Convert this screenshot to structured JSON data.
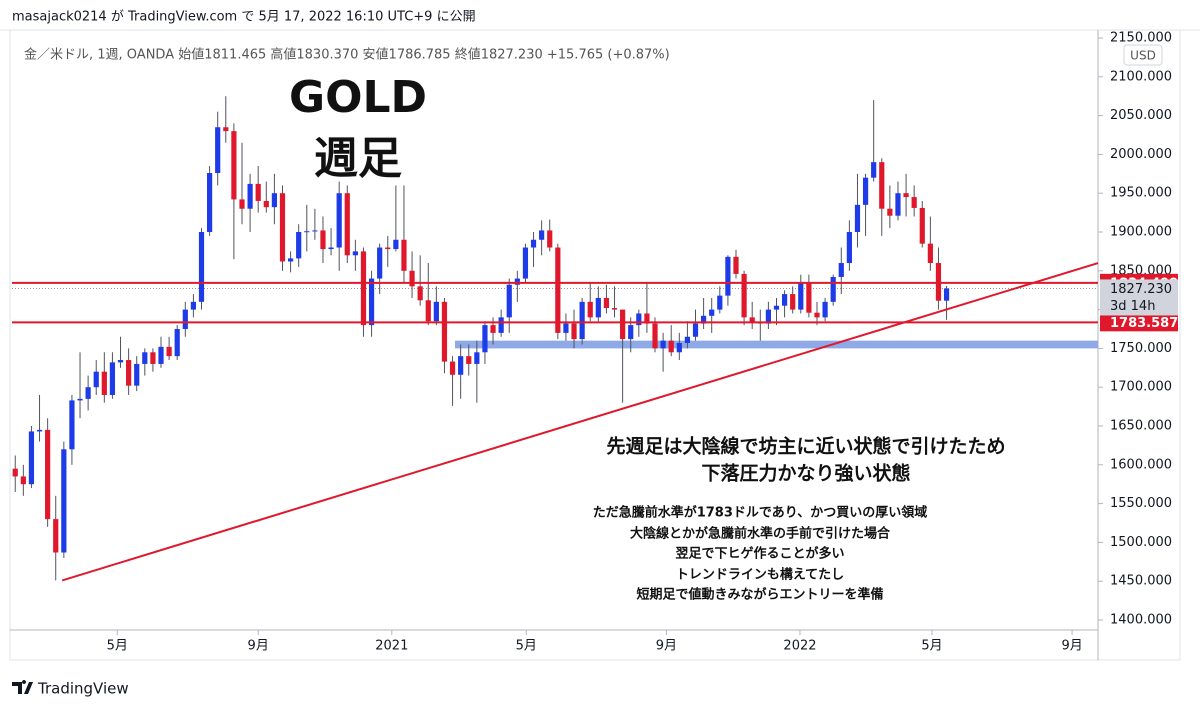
{
  "header": "masajack0214 が TradingView.com で 5月 17, 2022 16:10 UTC+9 に公開",
  "footer": "TradingView",
  "chart_data": {
    "type": "candlestick",
    "legend_text": "金／米ドル, 1週, OANDA  始値1811.465  高値1830.370  安値1786.785  終値1827.230  +15.765 (+0.87%)",
    "currency": "USD",
    "up_color": "#1e3be8",
    "down_color": "#e0182c",
    "candles": [
      [
        1595,
        1612,
        1565,
        1585
      ],
      [
        1585,
        1600,
        1560,
        1575
      ],
      [
        1575,
        1650,
        1570,
        1643
      ],
      [
        1643,
        1690,
        1630,
        1645
      ],
      [
        1645,
        1660,
        1520,
        1530
      ],
      [
        1530,
        1560,
        1451,
        1487
      ],
      [
        1487,
        1630,
        1480,
        1620
      ],
      [
        1620,
        1690,
        1600,
        1683
      ],
      [
        1683,
        1745,
        1660,
        1685
      ],
      [
        1685,
        1715,
        1670,
        1700
      ],
      [
        1700,
        1735,
        1690,
        1720
      ],
      [
        1720,
        1745,
        1680,
        1690
      ],
      [
        1690,
        1745,
        1685,
        1732
      ],
      [
        1732,
        1765,
        1725,
        1735
      ],
      [
        1735,
        1750,
        1690,
        1702
      ],
      [
        1702,
        1740,
        1695,
        1730
      ],
      [
        1730,
        1750,
        1715,
        1745
      ],
      [
        1745,
        1750,
        1720,
        1730
      ],
      [
        1730,
        1765,
        1725,
        1752
      ],
      [
        1752,
        1765,
        1735,
        1740
      ],
      [
        1740,
        1780,
        1735,
        1775
      ],
      [
        1775,
        1810,
        1765,
        1800
      ],
      [
        1800,
        1820,
        1790,
        1810
      ],
      [
        1810,
        1905,
        1800,
        1900
      ],
      [
        1900,
        1985,
        1895,
        1976
      ],
      [
        1976,
        2055,
        1960,
        2035
      ],
      [
        2035,
        2075,
        2015,
        2030
      ],
      [
        2030,
        2040,
        1865,
        1942
      ],
      [
        1942,
        2015,
        1910,
        1930
      ],
      [
        1930,
        1975,
        1900,
        1962
      ],
      [
        1962,
        1985,
        1925,
        1940
      ],
      [
        1940,
        1965,
        1925,
        1932
      ],
      [
        1932,
        1975,
        1910,
        1950
      ],
      [
        1950,
        1960,
        1850,
        1862
      ],
      [
        1862,
        1875,
        1848,
        1866
      ],
      [
        1866,
        1910,
        1855,
        1900
      ],
      [
        1900,
        1935,
        1875,
        1901
      ],
      [
        1901,
        1930,
        1890,
        1902
      ],
      [
        1902,
        1920,
        1860,
        1878
      ],
      [
        1878,
        1905,
        1870,
        1880
      ],
      [
        1880,
        1965,
        1850,
        1950
      ],
      [
        1950,
        1960,
        1860,
        1870
      ],
      [
        1870,
        1890,
        1850,
        1875
      ],
      [
        1875,
        1880,
        1765,
        1780
      ],
      [
        1780,
        1850,
        1765,
        1840
      ],
      [
        1840,
        1885,
        1820,
        1880
      ],
      [
        1880,
        1895,
        1855,
        1878
      ],
      [
        1878,
        1960,
        1875,
        1890
      ],
      [
        1890,
        1960,
        1835,
        1850
      ],
      [
        1850,
        1875,
        1815,
        1830
      ],
      [
        1830,
        1870,
        1805,
        1812
      ],
      [
        1812,
        1860,
        1780,
        1785
      ],
      [
        1785,
        1830,
        1780,
        1810
      ],
      [
        1810,
        1815,
        1718,
        1733
      ],
      [
        1733,
        1740,
        1676,
        1716
      ],
      [
        1716,
        1755,
        1685,
        1740
      ],
      [
        1740,
        1755,
        1715,
        1730
      ],
      [
        1730,
        1760,
        1680,
        1745
      ],
      [
        1745,
        1785,
        1730,
        1780
      ],
      [
        1780,
        1790,
        1755,
        1770
      ],
      [
        1770,
        1800,
        1765,
        1790
      ],
      [
        1790,
        1840,
        1770,
        1832
      ],
      [
        1832,
        1850,
        1810,
        1840
      ],
      [
        1840,
        1885,
        1835,
        1880
      ],
      [
        1880,
        1900,
        1855,
        1890
      ],
      [
        1890,
        1915,
        1870,
        1902
      ],
      [
        1902,
        1916,
        1875,
        1880
      ],
      [
        1880,
        1885,
        1762,
        1770
      ],
      [
        1770,
        1795,
        1760,
        1782
      ],
      [
        1782,
        1800,
        1750,
        1762
      ],
      [
        1762,
        1815,
        1755,
        1810
      ],
      [
        1810,
        1834,
        1785,
        1790
      ],
      [
        1790,
        1830,
        1785,
        1815
      ],
      [
        1815,
        1832,
        1795,
        1802
      ],
      [
        1802,
        1830,
        1790,
        1800
      ],
      [
        1800,
        1800,
        1680,
        1762
      ],
      [
        1762,
        1790,
        1745,
        1780
      ],
      [
        1780,
        1800,
        1765,
        1795
      ],
      [
        1795,
        1835,
        1770,
        1782
      ],
      [
        1782,
        1790,
        1745,
        1750
      ],
      [
        1750,
        1770,
        1720,
        1760
      ],
      [
        1760,
        1780,
        1740,
        1745
      ],
      [
        1745,
        1770,
        1735,
        1757
      ],
      [
        1757,
        1785,
        1750,
        1765
      ],
      [
        1765,
        1800,
        1760,
        1782
      ],
      [
        1782,
        1815,
        1775,
        1792
      ],
      [
        1792,
        1815,
        1770,
        1800
      ],
      [
        1800,
        1830,
        1795,
        1818
      ],
      [
        1818,
        1870,
        1805,
        1868
      ],
      [
        1868,
        1877,
        1840,
        1846
      ],
      [
        1846,
        1850,
        1780,
        1790
      ],
      [
        1790,
        1810,
        1775,
        1784
      ],
      [
        1784,
        1800,
        1760,
        1782
      ],
      [
        1782,
        1810,
        1775,
        1800
      ],
      [
        1800,
        1815,
        1780,
        1805
      ],
      [
        1805,
        1825,
        1790,
        1820
      ],
      [
        1820,
        1830,
        1795,
        1800
      ],
      [
        1800,
        1845,
        1795,
        1835
      ],
      [
        1835,
        1845,
        1790,
        1796
      ],
      [
        1796,
        1810,
        1780,
        1790
      ],
      [
        1790,
        1815,
        1785,
        1810
      ],
      [
        1810,
        1845,
        1805,
        1842
      ],
      [
        1842,
        1880,
        1820,
        1860
      ],
      [
        1860,
        1915,
        1850,
        1900
      ],
      [
        1900,
        1975,
        1880,
        1935
      ],
      [
        1935,
        1975,
        1895,
        1970
      ],
      [
        1970,
        2070,
        1965,
        1990
      ],
      [
        1990,
        1995,
        1895,
        1930
      ],
      [
        1930,
        1960,
        1905,
        1921
      ],
      [
        1921,
        1965,
        1915,
        1950
      ],
      [
        1950,
        1975,
        1920,
        1945
      ],
      [
        1945,
        1960,
        1920,
        1931
      ],
      [
        1931,
        1940,
        1880,
        1885
      ],
      [
        1885,
        1920,
        1850,
        1860
      ],
      [
        1860,
        1880,
        1800,
        1811.465
      ],
      [
        1811.465,
        1830.37,
        1786.785,
        1827.23
      ]
    ],
    "xlim": [
      -0.4,
      133.7
    ],
    "xticks": [
      {
        "value": 12.6,
        "label": "5月"
      },
      {
        "value": 30,
        "label": "9月"
      },
      {
        "value": 46.5,
        "label": "2021"
      },
      {
        "value": 63.1,
        "label": "5月"
      },
      {
        "value": 80.4,
        "label": "9月"
      },
      {
        "value": 96.9,
        "label": "2022"
      },
      {
        "value": 113.2,
        "label": "5月"
      },
      {
        "value": 130.5,
        "label": "9月"
      }
    ],
    "ylim": [
      1400,
      2150
    ],
    "yticks": [
      {
        "value": 1400,
        "label": "1400.000"
      },
      {
        "value": 1450,
        "label": "1450.000"
      },
      {
        "value": 1500,
        "label": "1500.000"
      },
      {
        "value": 1550,
        "label": "1550.000"
      },
      {
        "value": 1600,
        "label": "1600.000"
      },
      {
        "value": 1650,
        "label": "1650.000"
      },
      {
        "value": 1700,
        "label": "1700.000"
      },
      {
        "value": 1750,
        "label": "1750.000"
      },
      {
        "value": 1800,
        "label": "1800.000"
      },
      {
        "value": 1850,
        "label": "1850.000"
      },
      {
        "value": 1900,
        "label": "1900.000"
      },
      {
        "value": 1950,
        "label": "1950.000"
      },
      {
        "value": 2000,
        "label": "2000.000"
      },
      {
        "value": 2050,
        "label": "2050.000"
      },
      {
        "value": 2100,
        "label": "2100.000"
      },
      {
        "value": 2150,
        "label": "2150.000"
      }
    ],
    "price_lines": [
      {
        "value": 1834.499,
        "color": "#e0182c"
      },
      {
        "value": 1783.587,
        "color": "#e0182c"
      }
    ],
    "last_price": {
      "value": 1827.23,
      "label": "1827.230",
      "countdown": "3d 14h"
    },
    "zone": {
      "from": 1750,
      "to": 1760,
      "start": 54.3,
      "color": "#8fa9e6"
    },
    "trendline": {
      "x": [
        5.8,
        133.7
      ],
      "y": [
        1451,
        1860
      ],
      "color": "#e0182c"
    },
    "annotations": {
      "title": [
        "GOLD",
        "週足"
      ],
      "main": [
        "先週足は大陰線で坊主に近い状態で引けたため",
        "下落圧力かなり強い状態"
      ],
      "sub": [
        "ただ急騰前水準が1783ドルであり、かつ買いの厚い領域",
        "大陰線とかが急騰前水準の手前で引けた場合",
        "翌足で下ヒゲ作ることが多い",
        "トレンドラインも構えてたし",
        "短期足で値動きみながらエントリーを準備"
      ]
    }
  }
}
